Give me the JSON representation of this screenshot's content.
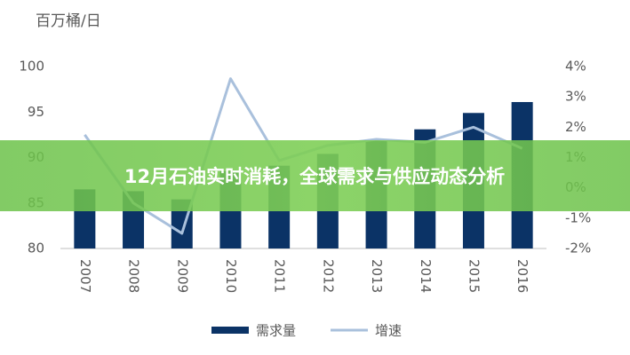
{
  "chart_data": {
    "type": "bar",
    "banner": "12月石油实时消耗，全球需求与供应动态分析",
    "y_label": "百万桶/日",
    "categories": [
      "2007",
      "2008",
      "2009",
      "2010",
      "2011",
      "2012",
      "2013",
      "2014",
      "2015",
      "2016"
    ],
    "series": [
      {
        "name": "需求量",
        "type": "bar",
        "color": "#0b3366",
        "values": [
          86.5,
          86.3,
          85.4,
          88.5,
          89.1,
          90.4,
          91.9,
          93.1,
          94.9,
          96.1
        ]
      },
      {
        "name": "增速",
        "type": "line",
        "axis": "y2",
        "color": "#a9c0dc",
        "values": [
          1.75,
          -0.5,
          -1.5,
          3.6,
          0.9,
          1.4,
          1.6,
          1.5,
          2.0,
          1.3
        ]
      }
    ],
    "ylim": [
      80,
      100
    ],
    "yticks": [
      80,
      85,
      90,
      95,
      100
    ],
    "y2lim": [
      -2,
      4
    ],
    "y2ticks": [
      {
        "value": -2,
        "label": "-2%"
      },
      {
        "value": -1,
        "label": "-1%"
      },
      {
        "value": 0,
        "label": "0%"
      },
      {
        "value": 1,
        "label": "1%"
      },
      {
        "value": 2,
        "label": "2%"
      },
      {
        "value": 3,
        "label": "3%"
      },
      {
        "value": 4,
        "label": "4%"
      }
    ]
  }
}
